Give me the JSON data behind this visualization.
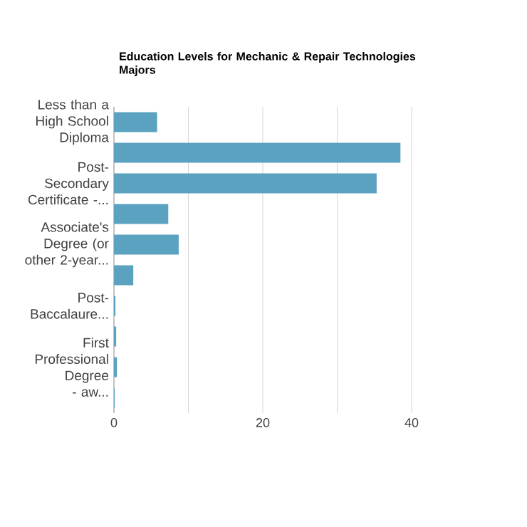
{
  "chart_data": {
    "type": "bar",
    "orientation": "horizontal",
    "title": "Education Levels for Mechanic & Repair Technologies Majors",
    "categories": [
      "Less than a High School Diploma",
      null,
      "Post-Secondary Certificate -...",
      null,
      "Associate's Degree (or other 2-year...",
      null,
      "Post-Baccalaure...",
      null,
      "First Professional Degree - aw...",
      null
    ],
    "values": [
      5.8,
      38.5,
      35.3,
      7.3,
      8.7,
      2.6,
      0.2,
      0.3,
      0.4,
      0.1
    ],
    "color": "#5aa2c0",
    "xlim": [
      0,
      40
    ],
    "xticks": [
      0,
      {
        "value": 10,
        "label": null
      },
      20,
      {
        "value": 30,
        "label": null
      },
      40
    ],
    "grid": "x"
  }
}
